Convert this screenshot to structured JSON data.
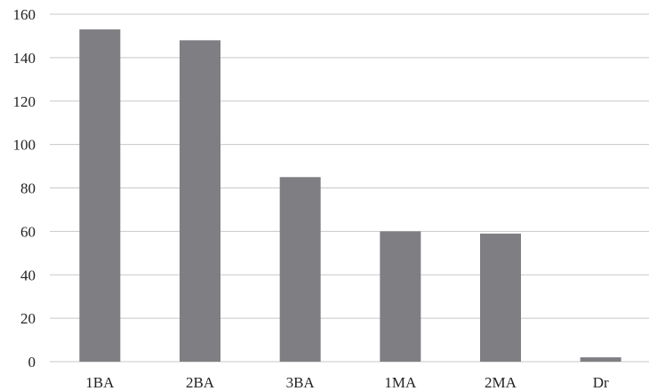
{
  "chart_data": {
    "type": "bar",
    "title": "",
    "xlabel": "",
    "ylabel": "",
    "categories": [
      "1BA",
      "2BA",
      "3BA",
      "1MA",
      "2MA",
      "Dr"
    ],
    "values": [
      153,
      148,
      85,
      60,
      59,
      2
    ],
    "ylim": [
      0,
      160
    ],
    "yticks": [
      "0",
      "20",
      "40",
      "60",
      "80",
      "100",
      "120",
      "140",
      "160"
    ],
    "grid": true,
    "legend": "none",
    "bar_color": "#7f7f83"
  }
}
